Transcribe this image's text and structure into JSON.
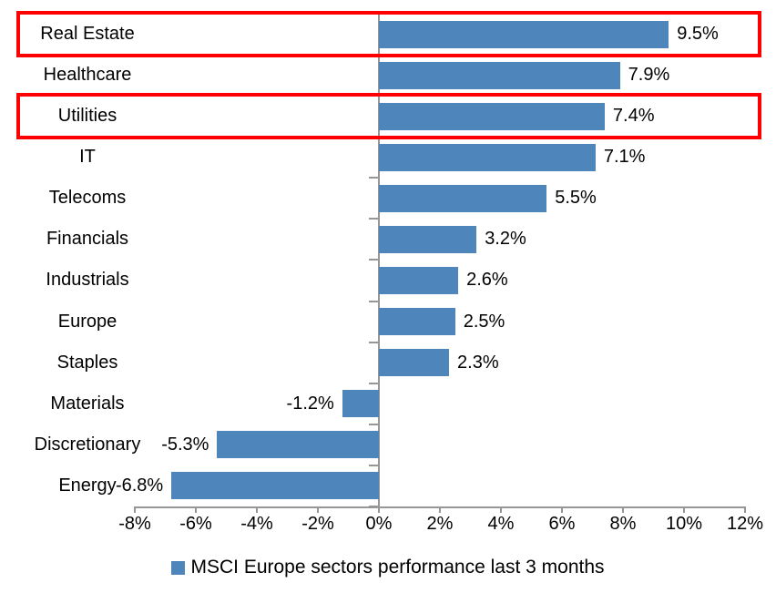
{
  "chart_data": {
    "type": "bar",
    "orientation": "horizontal",
    "categories": [
      "Real Estate",
      "Healthcare",
      "Utilities",
      "IT",
      "Telecoms",
      "Financials",
      "Industrials",
      "Europe",
      "Staples",
      "Materials",
      "Discretionary",
      "Energy"
    ],
    "values": [
      9.5,
      7.9,
      7.4,
      7.1,
      5.5,
      3.2,
      2.6,
      2.5,
      2.3,
      -1.2,
      -5.3,
      -6.8
    ],
    "value_labels": [
      "9.5%",
      "7.9%",
      "7.4%",
      "7.1%",
      "5.5%",
      "3.2%",
      "2.6%",
      "2.5%",
      "2.3%",
      "-1.2%",
      "-5.3%",
      "-6.8%"
    ],
    "x_ticks": [
      "-8%",
      "-6%",
      "-4%",
      "-2%",
      "0%",
      "2%",
      "4%",
      "6%",
      "8%",
      "10%",
      "12%"
    ],
    "x_tick_values": [
      -8,
      -6,
      -4,
      -2,
      0,
      2,
      4,
      6,
      8,
      10,
      12
    ],
    "xlim": [
      -8,
      12
    ],
    "grid": "off",
    "legend_position": "bottom-center",
    "title": "",
    "xlabel": "",
    "ylabel": "",
    "series_name": "MSCI Europe sectors performance last 3 months",
    "bar_color": "#4E86BC",
    "axis_color": "#969696",
    "text_color": "#000000",
    "highlight_color": "#FF0000",
    "highlighted_categories": [
      "Real Estate",
      "Utilities"
    ]
  },
  "legend": {
    "label": "MSCI Europe sectors performance last 3 months"
  }
}
